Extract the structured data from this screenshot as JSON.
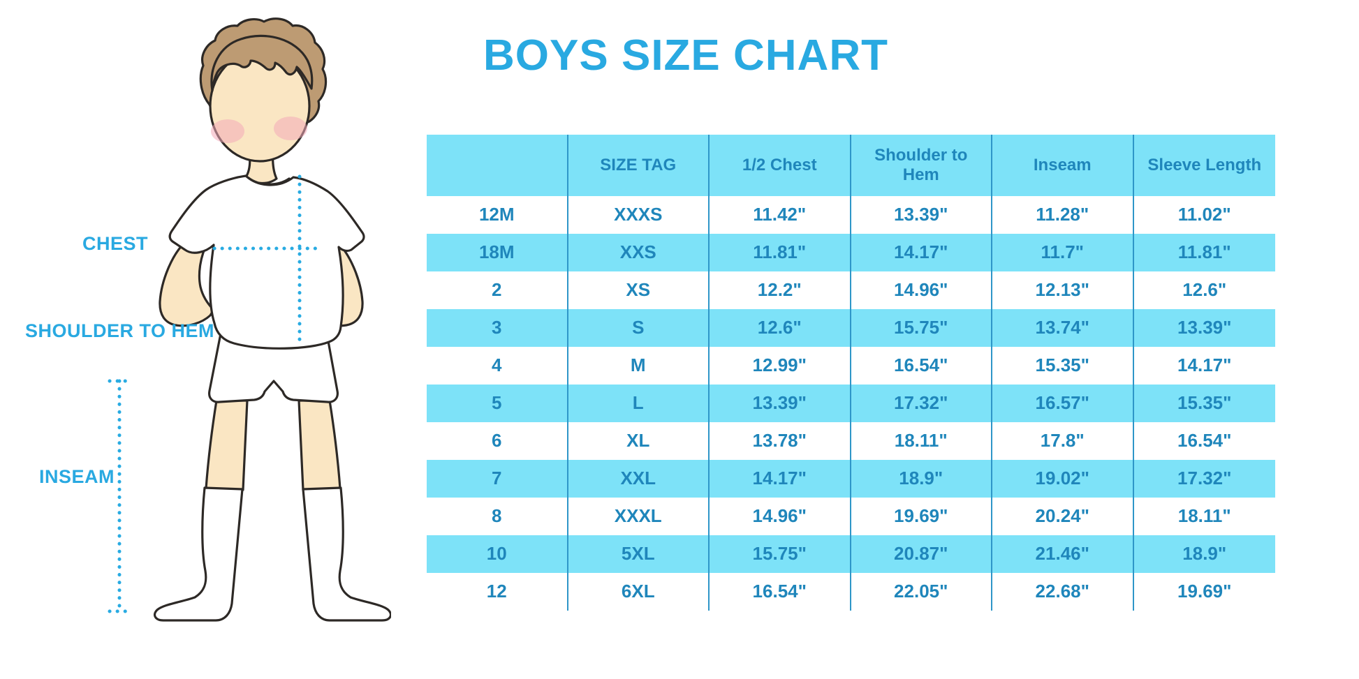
{
  "title": "BOYS SIZE CHART",
  "figure": {
    "description": "illustration of a boy in t-shirt, shorts and knee socks with dotted measurement guides",
    "labels": {
      "chest": "CHEST",
      "shoulder_to_hem": "SHOULDER TO HEM",
      "inseam": "INSEAM"
    }
  },
  "chart_data": {
    "type": "table",
    "title": "BOYS SIZE CHART",
    "columns": [
      "",
      "SIZE TAG",
      "1/2 Chest",
      "Shoulder to Hem",
      "Inseam",
      "Sleeve Length"
    ],
    "rows": [
      [
        "12M",
        "XXXS",
        "11.42\"",
        "13.39\"",
        "11.28\"",
        "11.02\""
      ],
      [
        "18M",
        "XXS",
        "11.81\"",
        "14.17\"",
        "11.7\"",
        "11.81\""
      ],
      [
        "2",
        "XS",
        "12.2\"",
        "14.96\"",
        "12.13\"",
        "12.6\""
      ],
      [
        "3",
        "S",
        "12.6\"",
        "15.75\"",
        "13.74\"",
        "13.39\""
      ],
      [
        "4",
        "M",
        "12.99\"",
        "16.54\"",
        "15.35\"",
        "14.17\""
      ],
      [
        "5",
        "L",
        "13.39\"",
        "17.32\"",
        "16.57\"",
        "15.35\""
      ],
      [
        "6",
        "XL",
        "13.78\"",
        "18.11\"",
        "17.8\"",
        "16.54\""
      ],
      [
        "7",
        "XXL",
        "14.17\"",
        "18.9\"",
        "19.02\"",
        "17.32\""
      ],
      [
        "8",
        "XXXL",
        "14.96\"",
        "19.69\"",
        "20.24\"",
        "18.11\""
      ],
      [
        "10",
        "5XL",
        "15.75\"",
        "20.87\"",
        "21.46\"",
        "18.9\""
      ],
      [
        "12",
        "6XL",
        "16.54\"",
        "22.05\"",
        "22.68\"",
        "19.69\""
      ]
    ],
    "row_striping": "white / cyan alternating, header cyan",
    "grid": "vertical separators only"
  },
  "colors": {
    "accent": "#29A9E1",
    "table_header_bg": "#7DE2F8",
    "table_alt_row_bg": "#7DE2F8",
    "table_grid_line": "#2E96C8",
    "table_text": "#1F86BB",
    "dotted_line": "#29ABE2",
    "skin": "#FAE6C3",
    "hair": "#BD9B73",
    "outline": "#2D2926",
    "blush": "#F3A9B8",
    "garment": "#FFFFFF"
  }
}
